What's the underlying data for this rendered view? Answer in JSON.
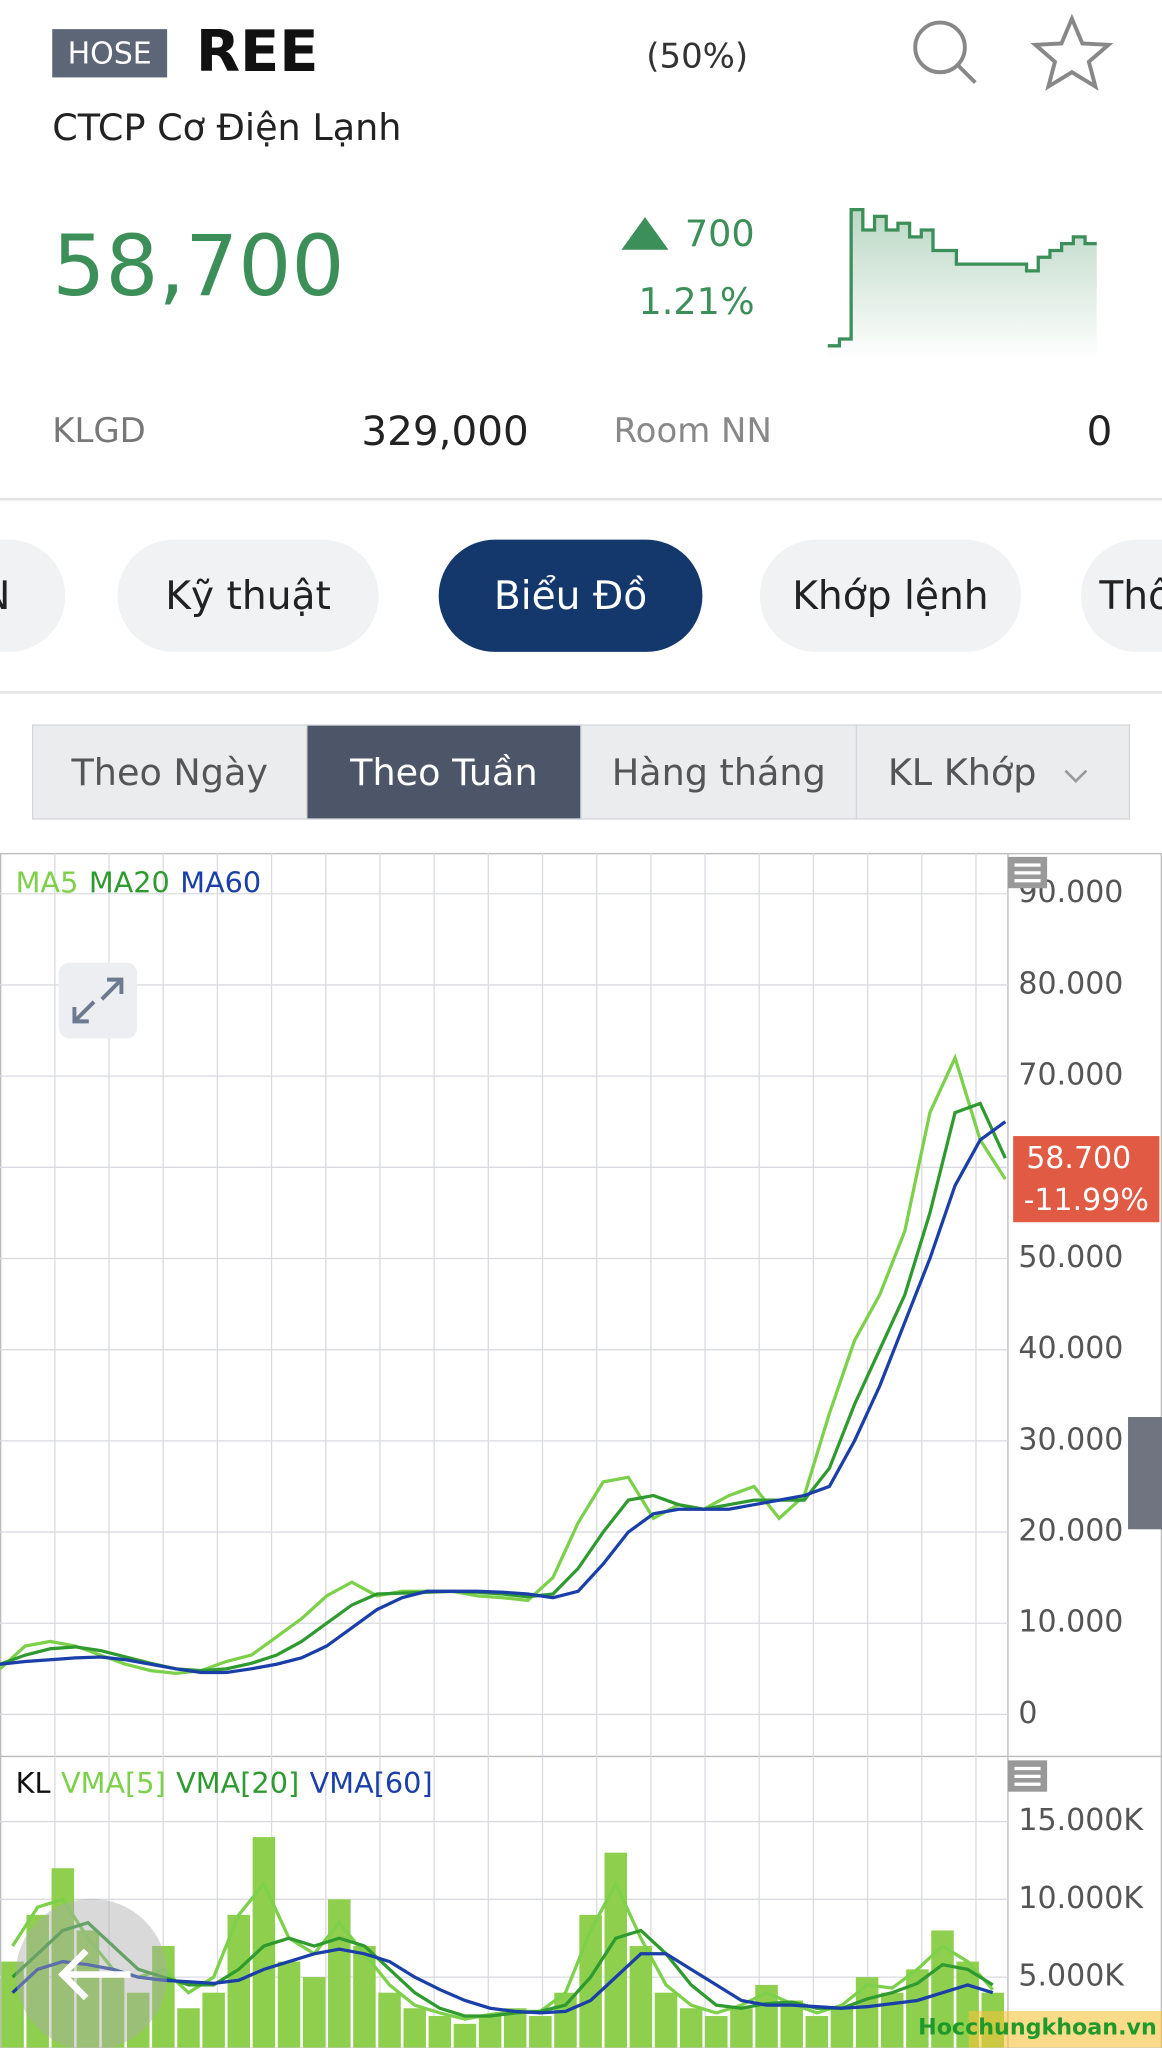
{
  "header": {
    "exchange": "HOSE",
    "ticker": "REE",
    "ratio": "(50%)",
    "company": "CTCP Cơ Điện Lạnh",
    "price": "58,700",
    "change": "700",
    "change_pct": "1.21%"
  },
  "sparkline": {
    "values": [
      57200,
      57300,
      59200,
      58900,
      59100,
      58900,
      59000,
      58800,
      58900,
      58600,
      58600,
      58400,
      58400,
      58400,
      58400,
      58400,
      58400,
      58300,
      58500,
      58600,
      58700,
      58800,
      58700,
      58700
    ],
    "ylim": [
      57000,
      59300
    ],
    "color": "#3c8f58"
  },
  "stats": {
    "volume_label": "KLGD",
    "volume": "329,000",
    "room_label": "Room NN",
    "room": "0"
  },
  "tabs": [
    "N",
    "Kỹ thuật",
    "Biểu Đồ",
    "Khớp lệnh",
    "Thô"
  ],
  "active_tab": 2,
  "periods": [
    "Theo Ngày",
    "Theo Tuần",
    "Hàng tháng",
    "KL Khớp"
  ],
  "active_period": 1,
  "chart_data": [
    {
      "type": "line",
      "grid": true,
      "series": [
        {
          "name": "MA5",
          "color": "#7cd04a",
          "values": [
            5000,
            7500,
            8000,
            7500,
            6500,
            5500,
            4800,
            4500,
            4800,
            5800,
            6500,
            8500,
            10500,
            13000,
            14500,
            13000,
            13500,
            13500,
            13500,
            13000,
            12800,
            12500,
            15000,
            21000,
            25500,
            26000,
            21500,
            23000,
            22500,
            24000,
            25000,
            21500,
            24000,
            33000,
            41000,
            46000,
            53000,
            66000,
            72000,
            63000,
            58700
          ]
        },
        {
          "name": "MA20",
          "color": "#2f9a2f",
          "values": [
            5500,
            6500,
            7200,
            7400,
            7000,
            6300,
            5600,
            5000,
            4800,
            5000,
            5600,
            6500,
            8000,
            10000,
            12000,
            13200,
            13300,
            13400,
            13500,
            13400,
            13200,
            12900,
            13200,
            16000,
            20000,
            23500,
            24000,
            23000,
            22500,
            23000,
            23500,
            23500,
            23500,
            27000,
            34000,
            40000,
            46000,
            55000,
            66000,
            67000,
            61000
          ]
        },
        {
          "name": "MA60",
          "color": "#1a3fa8",
          "values": [
            5500,
            5800,
            6000,
            6200,
            6300,
            6000,
            5500,
            5000,
            4600,
            4600,
            5000,
            5500,
            6200,
            7500,
            9500,
            11500,
            12800,
            13500,
            13500,
            13500,
            13400,
            13200,
            12800,
            13500,
            16500,
            20000,
            22000,
            22500,
            22500,
            22500,
            23000,
            23500,
            24000,
            25000,
            30000,
            36000,
            43000,
            50000,
            58000,
            63000,
            65000
          ]
        }
      ],
      "ylim": [
        -4610,
        94470
      ],
      "yticks": [
        0,
        {
          "value": 10000,
          "label": "10.000"
        },
        {
          "value": 20000,
          "label": "20.000"
        },
        {
          "value": 30000,
          "label": "30.000"
        },
        {
          "value": 40000,
          "label": "40.000"
        },
        {
          "value": 50000,
          "label": "50.000"
        },
        {
          "value": 60000,
          "label": "60.000"
        },
        {
          "value": 70000,
          "label": "70.000"
        },
        {
          "value": 80000,
          "label": "80.000"
        },
        {
          "value": 90000,
          "label": "90.000"
        }
      ],
      "last_price": 58700,
      "last_price_label": "58.700",
      "last_change": "-11.99%"
    },
    {
      "type": "bar",
      "grid": true,
      "series": [
        {
          "name": "KL",
          "type": "bar",
          "color": "#8fcf4e",
          "values": [
            6000,
            9000,
            12000,
            8000,
            5000,
            4000,
            7000,
            3000,
            4000,
            9000,
            14000,
            6000,
            5000,
            10000,
            7000,
            4000,
            3000,
            2500,
            2000,
            2500,
            3000,
            2500,
            4000,
            9000,
            13000,
            7000,
            4000,
            3000,
            2500,
            3000,
            4500,
            3500,
            2500,
            3000,
            5000,
            4000,
            5500,
            8000,
            6000,
            4000
          ]
        },
        {
          "name": "VMA[5]",
          "type": "line",
          "color": "#7cd04a",
          "values": [
            7000,
            9500,
            10000,
            7500,
            5500,
            5000,
            5500,
            4000,
            5000,
            9000,
            11000,
            7500,
            6500,
            8500,
            6500,
            4500,
            3200,
            2700,
            2300,
            2600,
            2800,
            2800,
            4000,
            8000,
            11000,
            7500,
            4500,
            3200,
            2700,
            3200,
            4000,
            3300,
            2700,
            3200,
            4500,
            4300,
            5500,
            7000,
            6000,
            4200
          ]
        },
        {
          "name": "VMA[20]",
          "type": "line",
          "color": "#2f9a2f",
          "values": [
            5000,
            6500,
            8000,
            8500,
            7000,
            5500,
            5000,
            4500,
            4500,
            5500,
            7000,
            7500,
            7000,
            7500,
            7000,
            5500,
            4000,
            3000,
            2500,
            2500,
            2700,
            2800,
            3200,
            5000,
            7500,
            8000,
            6500,
            4500,
            3200,
            3000,
            3300,
            3400,
            3000,
            3000,
            3600,
            4000,
            4600,
            5800,
            5500,
            4500
          ]
        },
        {
          "name": "VMA[60]",
          "type": "line",
          "color": "#1a3fa8",
          "values": [
            4000,
            5500,
            6000,
            5800,
            5500,
            5000,
            4800,
            4700,
            4600,
            4800,
            5500,
            6000,
            6500,
            6800,
            6500,
            6000,
            5000,
            4200,
            3500,
            3000,
            2800,
            2700,
            2800,
            3500,
            5000,
            6500,
            6500,
            5500,
            4500,
            3500,
            3200,
            3200,
            3100,
            3000,
            3100,
            3300,
            3500,
            4000,
            4500,
            4000
          ]
        }
      ],
      "ylim": [
        470,
        19100
      ],
      "yticks": [
        {
          "value": 5000,
          "label": "5.000K"
        },
        {
          "value": 10000,
          "label": "10.000K"
        },
        {
          "value": 15000,
          "label": "15.000K"
        }
      ]
    }
  ],
  "watermark": "Hocchungkhoan.vn"
}
